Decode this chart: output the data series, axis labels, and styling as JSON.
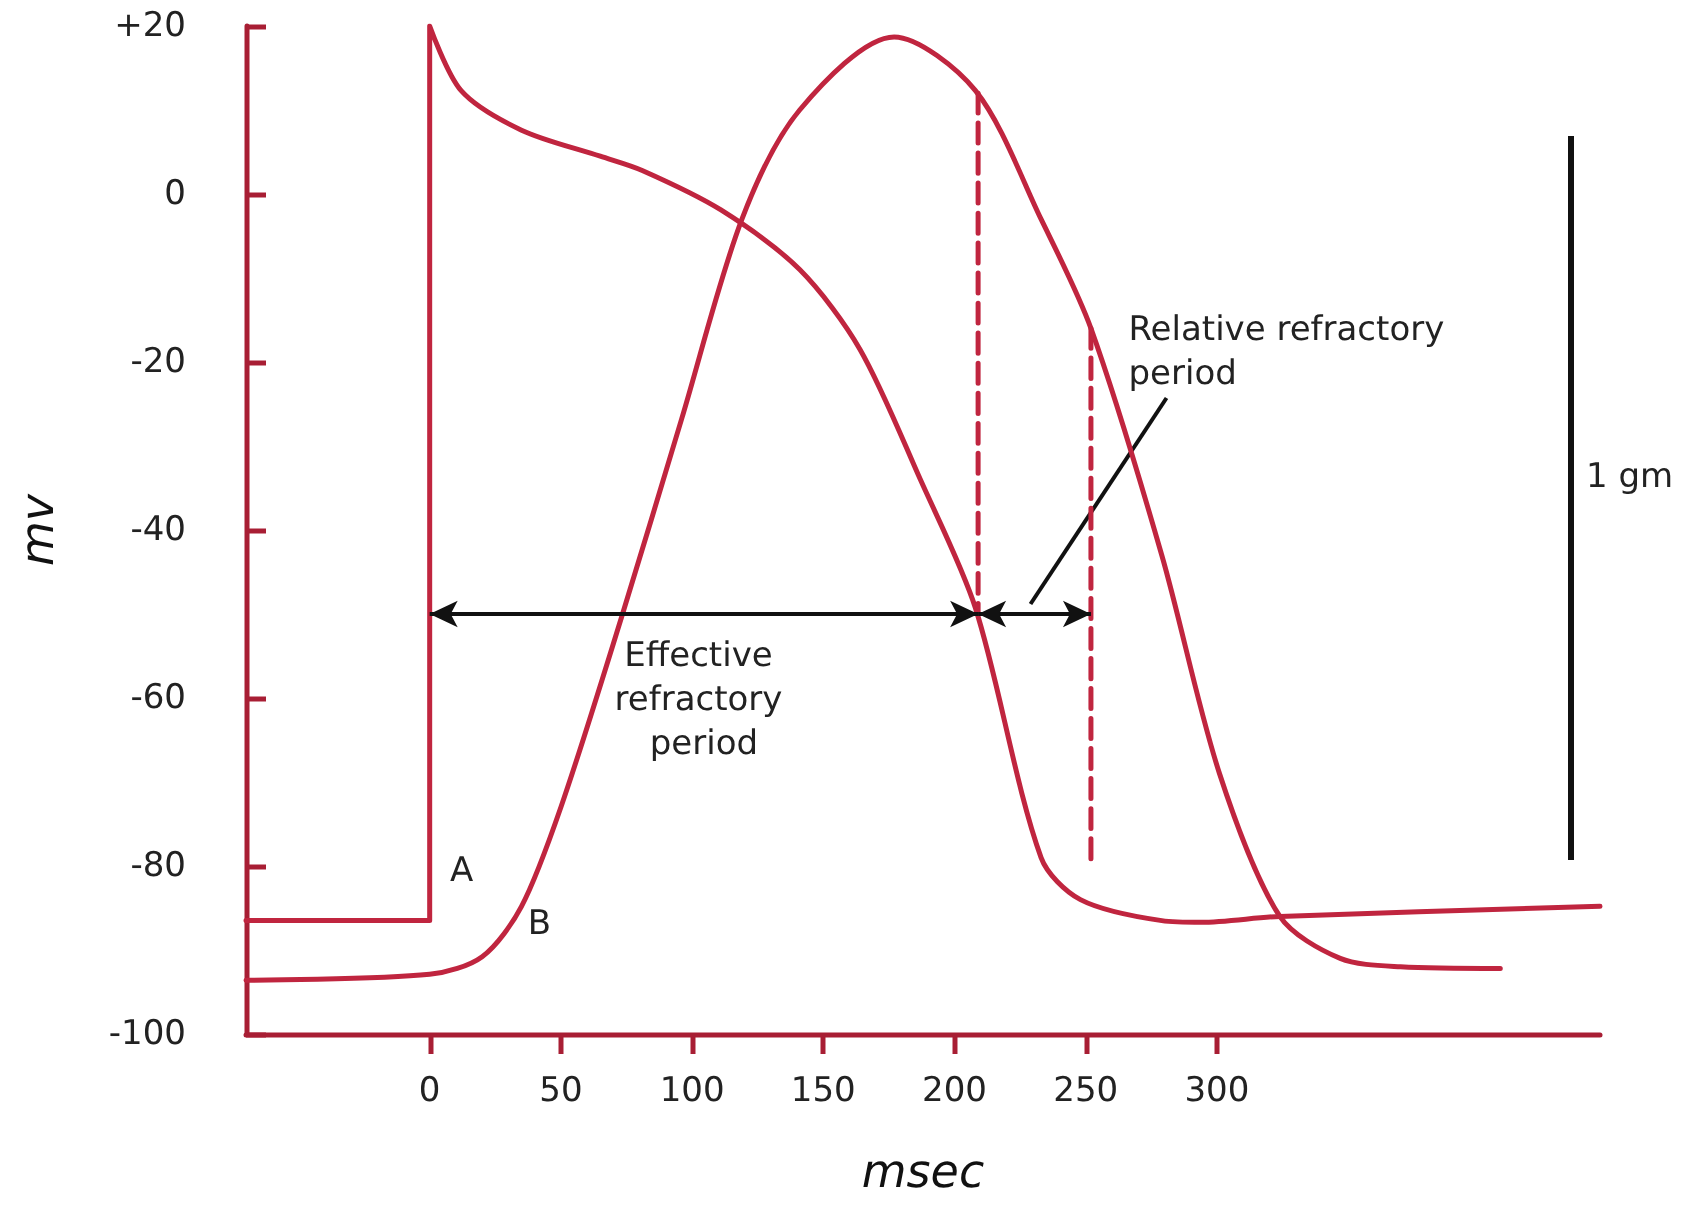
{
  "chart_data": {
    "type": "line",
    "xlabel": "msec",
    "ylabel": "mv",
    "xlim": [
      -70,
      446
    ],
    "ylim": [
      -100,
      20
    ],
    "xticks": [
      0,
      50,
      100,
      150,
      200,
      250,
      300
    ],
    "yticks": [
      {
        "value": 20,
        "label": "+20"
      },
      0,
      -20,
      -40,
      -60,
      -80,
      -100
    ],
    "grid": false,
    "marker": "none",
    "series": [
      {
        "color": "#c0253f",
        "line_style": "solid",
        "x": [
          -70,
          0,
          0,
          12,
          35,
          65,
          81,
          111,
          141,
          164,
          187,
          208,
          233,
          248,
          279,
          294,
          324,
          446
        ],
        "values": [
          -86.5,
          -86.5,
          20,
          12.3,
          7.6,
          4.5,
          2.8,
          -1.9,
          -9,
          -18.5,
          -34,
          -49.3,
          -79,
          -84,
          -86.5,
          -86.7,
          -86,
          -84.8
        ]
      },
      {
        "color": "#c0253f",
        "line_style": "solid",
        "x": [
          -70,
          0,
          20,
          35,
          50,
          73,
          96,
          119,
          141,
          177,
          208,
          233,
          252,
          279,
          301,
          324,
          347,
          370,
          408
        ],
        "values": [
          -93.6,
          -92.9,
          -90.8,
          -84.8,
          -73,
          -50.5,
          -26.8,
          -3,
          10,
          18.7,
          12.3,
          -3,
          -16,
          -43,
          -69,
          -86,
          -91,
          -92,
          -92.2
        ]
      },
      {
        "color": "#c0253f",
        "line_style": "dashed",
        "x": [
          209,
          209
        ],
        "values": [
          12,
          -50
        ]
      },
      {
        "color": "#c0253f",
        "line_style": "dashed",
        "x": [
          252,
          252
        ],
        "values": [
          -16,
          -80
        ]
      }
    ],
    "annotations": [
      "A",
      "B",
      "Effective refractory period",
      "Relative refractory period",
      "1 gm"
    ]
  }
}
